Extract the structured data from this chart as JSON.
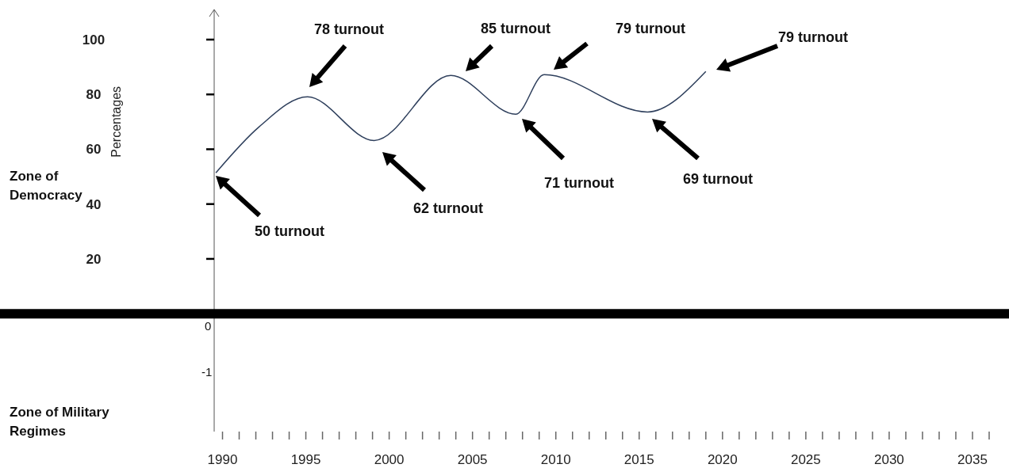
{
  "chart_data": {
    "type": "line",
    "ylabel": "Percentages",
    "x": [
      1989.6,
      1992.2,
      1995.1,
      1999.1,
      2003.7,
      2007.6,
      2009.3,
      2015.5,
      2019.0
    ],
    "series": [
      {
        "color": "#2e3f5c",
        "values": [
          51.4,
          68.2,
          79.1,
          63.2,
          86.9,
          72.8,
          87.2,
          73.6,
          88.4
        ]
      }
    ],
    "xlim": [
      1989.5,
      2037
    ],
    "xticks": [
      1990,
      {
        "value": 1991,
        "label": null
      },
      {
        "value": 1992,
        "label": null
      },
      {
        "value": 1993,
        "label": null
      },
      {
        "value": 1994,
        "label": null
      },
      1995,
      {
        "value": 1996,
        "label": null
      },
      {
        "value": 1997,
        "label": null
      },
      {
        "value": 1998,
        "label": null
      },
      {
        "value": 1999,
        "label": null
      },
      2000,
      {
        "value": 2001,
        "label": null
      },
      {
        "value": 2002,
        "label": null
      },
      {
        "value": 2003,
        "label": null
      },
      {
        "value": 2004,
        "label": null
      },
      2005,
      {
        "value": 2006,
        "label": null
      },
      {
        "value": 2007,
        "label": null
      },
      {
        "value": 2008,
        "label": null
      },
      {
        "value": 2009,
        "label": null
      },
      2010,
      {
        "value": 2011,
        "label": null
      },
      {
        "value": 2012,
        "label": null
      },
      {
        "value": 2013,
        "label": null
      },
      {
        "value": 2014,
        "label": null
      },
      2015,
      {
        "value": 2016,
        "label": null
      },
      {
        "value": 2017,
        "label": null
      },
      {
        "value": 2018,
        "label": null
      },
      {
        "value": 2019,
        "label": null
      },
      2020,
      {
        "value": 2021,
        "label": null
      },
      {
        "value": 2022,
        "label": null
      },
      {
        "value": 2023,
        "label": null
      },
      {
        "value": 2024,
        "label": null
      },
      2025,
      {
        "value": 2026,
        "label": null
      },
      {
        "value": 2027,
        "label": null
      },
      {
        "value": 2028,
        "label": null
      },
      {
        "value": 2029,
        "label": null
      },
      2030,
      {
        "value": 2031,
        "label": null
      },
      {
        "value": 2032,
        "label": null
      },
      {
        "value": 2033,
        "label": null
      },
      {
        "value": 2034,
        "label": null
      },
      2035,
      {
        "value": 2036,
        "label": null
      }
    ],
    "ylim": [
      -43,
      100
    ],
    "yticks": [
      100,
      80,
      60,
      40,
      20
    ],
    "ref_lines": [
      {
        "axis": "y",
        "value": 0,
        "color": "#000000"
      }
    ],
    "grid": false,
    "marker": "none",
    "line_style": "solid",
    "annotations": [
      "50 turnout",
      "78 turnout",
      "62 turnout",
      "85 turnout",
      "71 turnout",
      "79 turnout",
      "69 turnout",
      "79 turnout",
      "Zone of Democracy",
      "Zone of Military Regimes",
      "0",
      "-1"
    ]
  }
}
